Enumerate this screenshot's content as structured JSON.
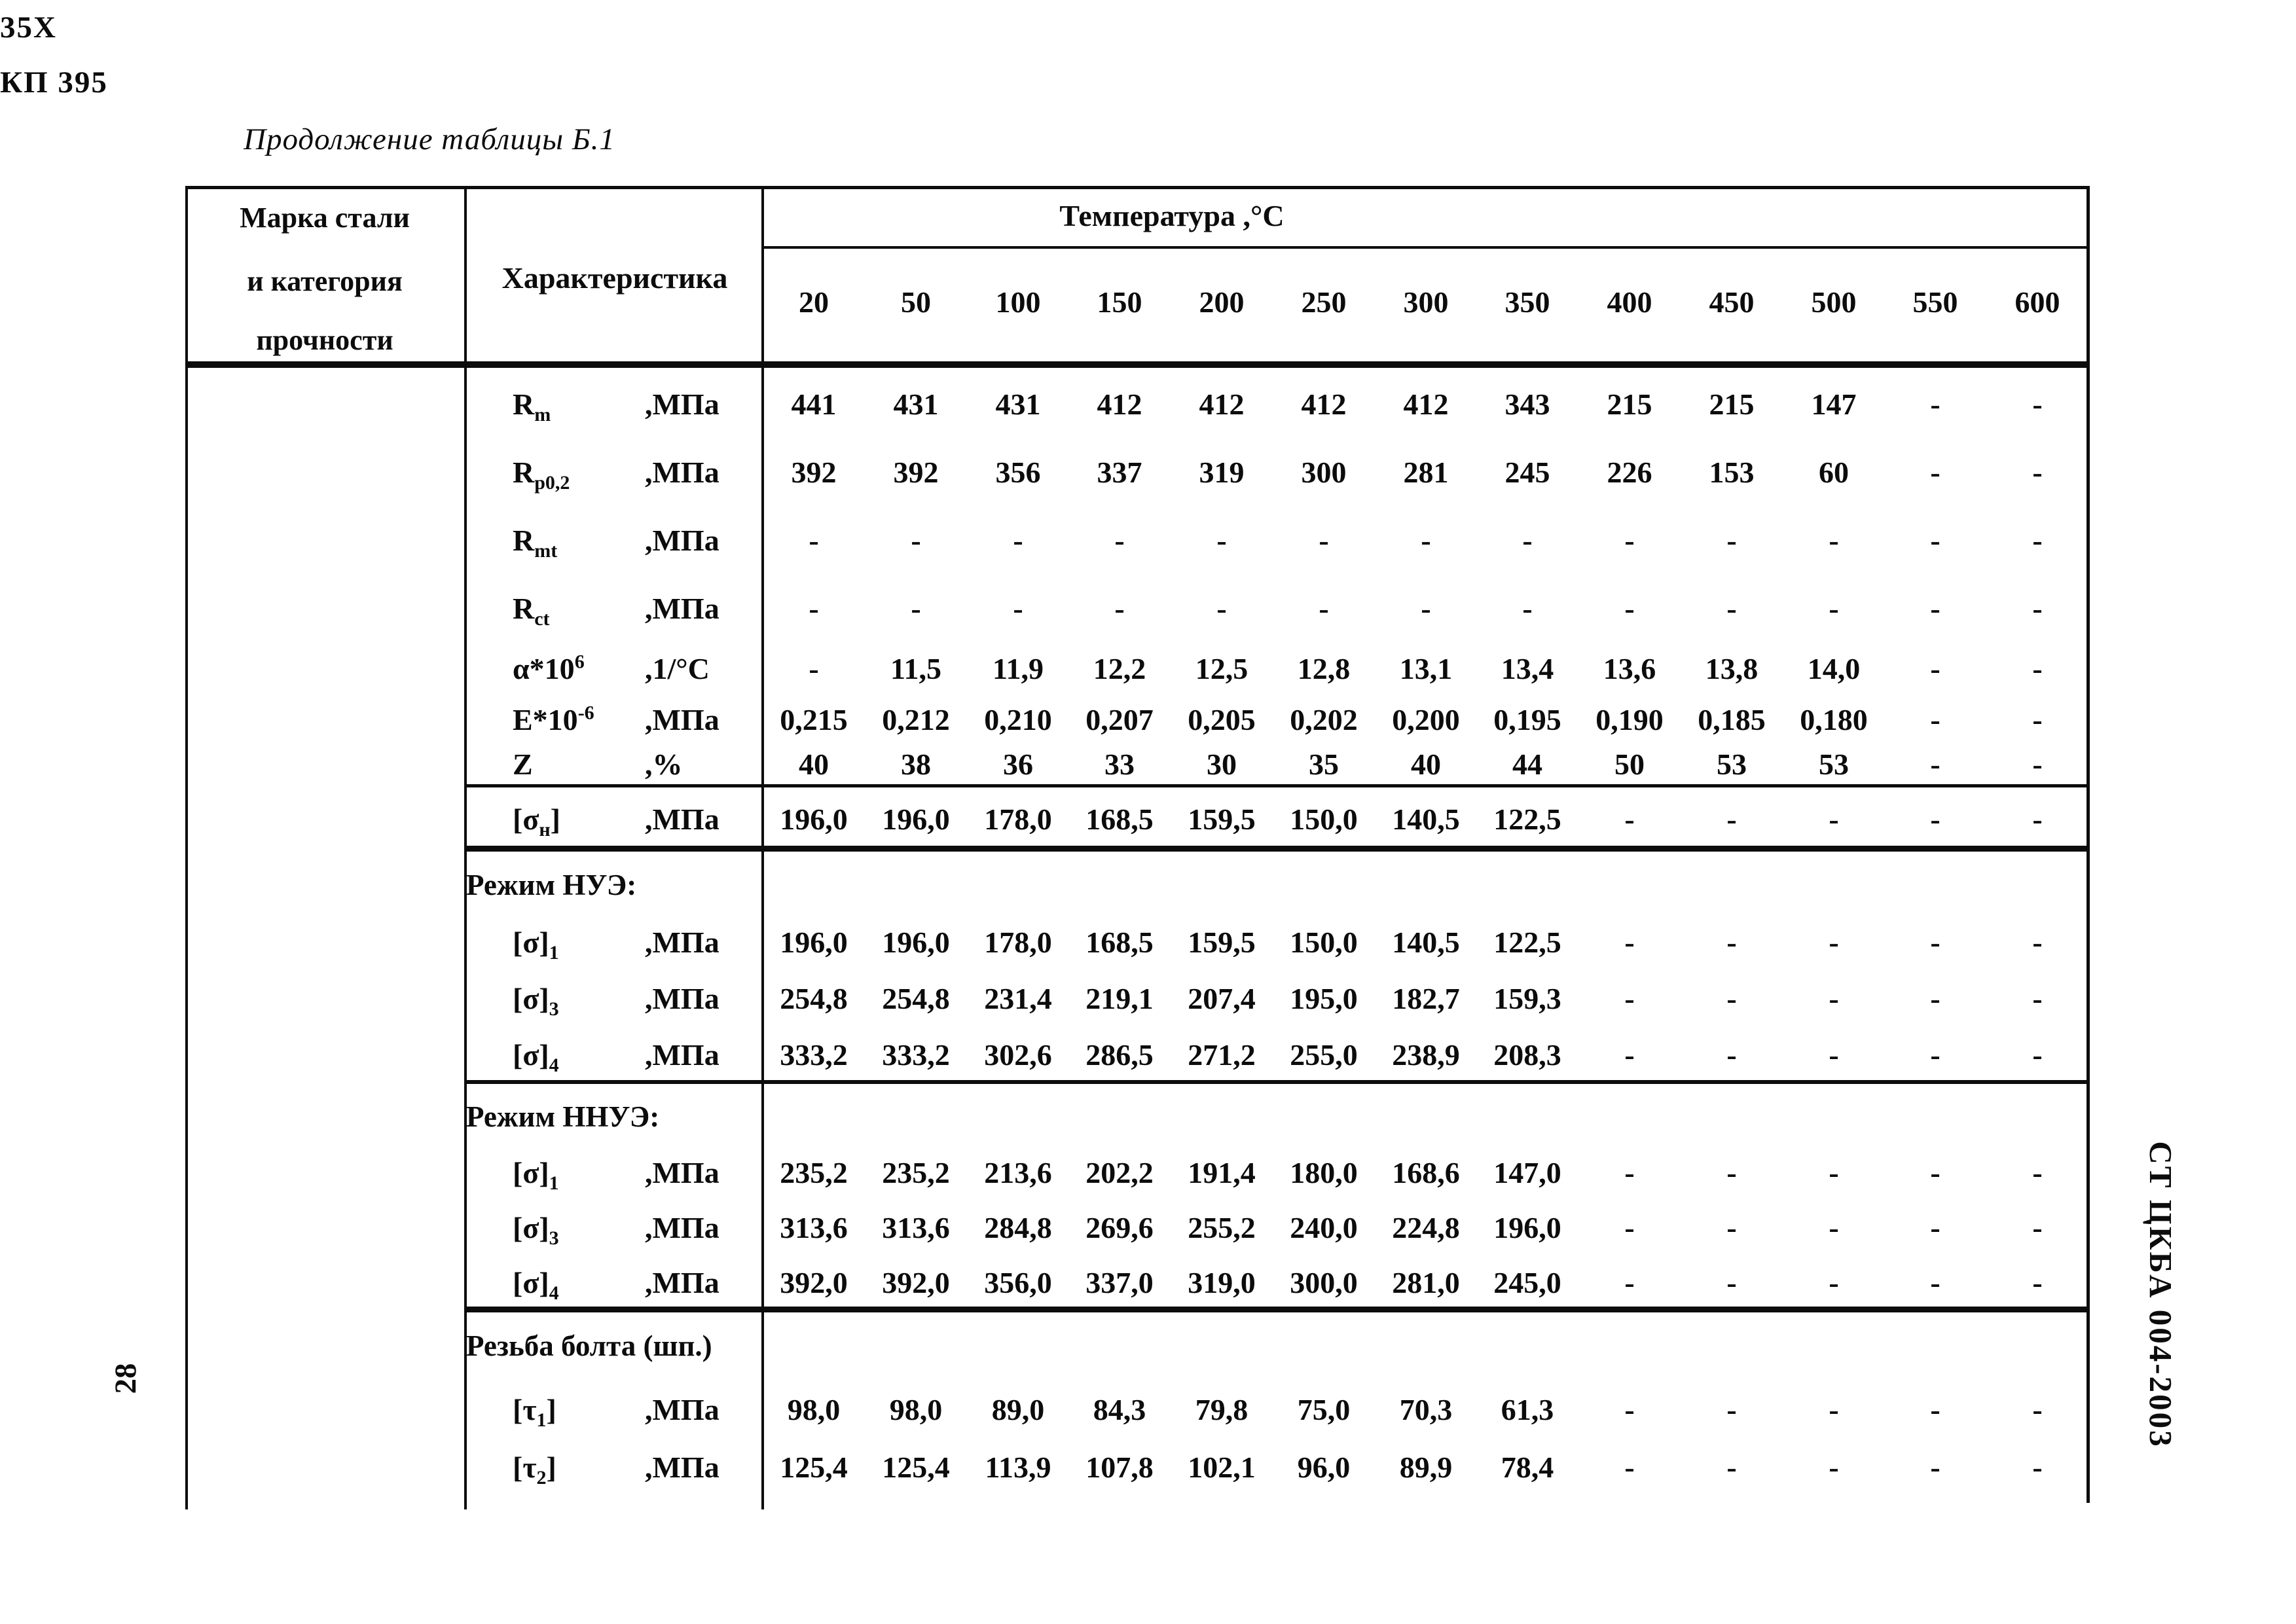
{
  "page": {
    "title": "Продолжение таблицы Б.1",
    "page_number": "28",
    "doc_code": "СТ ЦКБА 004-2003"
  },
  "table": {
    "header": {
      "col1": [
        "Марка стали",
        "и категория",
        "прочности"
      ],
      "col2": "Характеристика",
      "temp_label": "Температура ,°С",
      "temps": [
        "20",
        "50",
        "100",
        "150",
        "200",
        "250",
        "300",
        "350",
        "400",
        "450",
        "500",
        "550",
        "600"
      ]
    },
    "steel": [
      "35Х",
      "КП 395"
    ],
    "rows": [
      {
        "label": {
          "pre": "R",
          "sub": "m"
        },
        "unit": ",МПа",
        "values": [
          "441",
          "431",
          "431",
          "412",
          "412",
          "412",
          "412",
          "343",
          "215",
          "215",
          "147",
          "-",
          "-"
        ]
      },
      {
        "label": {
          "pre": "R",
          "sub": "p0,2"
        },
        "unit": ",МПа",
        "values": [
          "392",
          "392",
          "356",
          "337",
          "319",
          "300",
          "281",
          "245",
          "226",
          "153",
          "60",
          "-",
          "-"
        ]
      },
      {
        "label": {
          "pre": "R",
          "sub": "mt"
        },
        "unit": ",МПа",
        "values": [
          "-",
          "-",
          "-",
          "-",
          "-",
          "-",
          "-",
          "-",
          "-",
          "-",
          "-",
          "-",
          "-"
        ]
      },
      {
        "label": {
          "pre": "R",
          "sub": "ct"
        },
        "unit": ",МПа",
        "values": [
          "-",
          "-",
          "-",
          "-",
          "-",
          "-",
          "-",
          "-",
          "-",
          "-",
          "-",
          "-",
          "-"
        ]
      },
      {
        "label": {
          "pre": "α*10",
          "sup": "6"
        },
        "unit": ",1/°С",
        "values": [
          "-",
          "11,5",
          "11,9",
          "12,2",
          "12,5",
          "12,8",
          "13,1",
          "13,4",
          "13,6",
          "13,8",
          "14,0",
          "-",
          "-"
        ]
      },
      {
        "label": {
          "pre": "E*10",
          "sup": "-6"
        },
        "unit": ",МПа",
        "values": [
          "0,215",
          "0,212",
          "0,210",
          "0,207",
          "0,205",
          "0,202",
          "0,200",
          "0,195",
          "0,190",
          "0,185",
          "0,180",
          "-",
          "-"
        ]
      },
      {
        "label": {
          "pre": "Z"
        },
        "unit": ",%",
        "values": [
          "40",
          "38",
          "36",
          "33",
          "30",
          "35",
          "40",
          "44",
          "50",
          "53",
          "53",
          "-",
          "-"
        ]
      },
      {
        "label": {
          "pre": "[σ",
          "sub": "н",
          "post": "]"
        },
        "unit": ",МПа",
        "values": [
          "196,0",
          "196,0",
          "178,0",
          "168,5",
          "159,5",
          "150,0",
          "140,5",
          "122,5",
          "-",
          "-",
          "-",
          "-",
          "-"
        ]
      },
      {
        "section": "Режим НУЭ:"
      },
      {
        "label": {
          "pre": "[σ]",
          "sub": "1"
        },
        "unit": ",МПа",
        "values": [
          "196,0",
          "196,0",
          "178,0",
          "168,5",
          "159,5",
          "150,0",
          "140,5",
          "122,5",
          "-",
          "-",
          "-",
          "-",
          "-"
        ]
      },
      {
        "label": {
          "pre": "[σ]",
          "sub": "3"
        },
        "unit": ",МПа",
        "values": [
          "254,8",
          "254,8",
          "231,4",
          "219,1",
          "207,4",
          "195,0",
          "182,7",
          "159,3",
          "-",
          "-",
          "-",
          "-",
          "-"
        ]
      },
      {
        "label": {
          "pre": "[σ]",
          "sub": "4"
        },
        "unit": ",МПа",
        "values": [
          "333,2",
          "333,2",
          "302,6",
          "286,5",
          "271,2",
          "255,0",
          "238,9",
          "208,3",
          "-",
          "-",
          "-",
          "-",
          "-"
        ]
      },
      {
        "section": "Режим ННУЭ:"
      },
      {
        "label": {
          "pre": "[σ]",
          "sub": "1"
        },
        "unit": ",МПа",
        "values": [
          "235,2",
          "235,2",
          "213,6",
          "202,2",
          "191,4",
          "180,0",
          "168,6",
          "147,0",
          "-",
          "-",
          "-",
          "-",
          "-"
        ]
      },
      {
        "label": {
          "pre": "[σ]",
          "sub": "3"
        },
        "unit": ",МПа",
        "values": [
          "313,6",
          "313,6",
          "284,8",
          "269,6",
          "255,2",
          "240,0",
          "224,8",
          "196,0",
          "-",
          "-",
          "-",
          "-",
          "-"
        ]
      },
      {
        "label": {
          "pre": "[σ]",
          "sub": "4"
        },
        "unit": ",МПа",
        "values": [
          "392,0",
          "392,0",
          "356,0",
          "337,0",
          "319,0",
          "300,0",
          "281,0",
          "245,0",
          "-",
          "-",
          "-",
          "-",
          "-"
        ]
      },
      {
        "section": "Резьба болта (шп.)"
      },
      {
        "label": {
          "pre": "[τ",
          "sub": "1",
          "post": "]"
        },
        "unit": ",МПа",
        "values": [
          "98,0",
          "98,0",
          "89,0",
          "84,3",
          "79,8",
          "75,0",
          "70,3",
          "61,3",
          "-",
          "-",
          "-",
          "-",
          "-"
        ]
      },
      {
        "label": {
          "pre": "[τ",
          "sub": "2",
          "post": "]"
        },
        "unit": ",МПа",
        "values": [
          "125,4",
          "125,4",
          "113,9",
          "107,8",
          "102,1",
          "96,0",
          "89,9",
          "78,4",
          "-",
          "-",
          "-",
          "-",
          "-"
        ]
      }
    ]
  }
}
